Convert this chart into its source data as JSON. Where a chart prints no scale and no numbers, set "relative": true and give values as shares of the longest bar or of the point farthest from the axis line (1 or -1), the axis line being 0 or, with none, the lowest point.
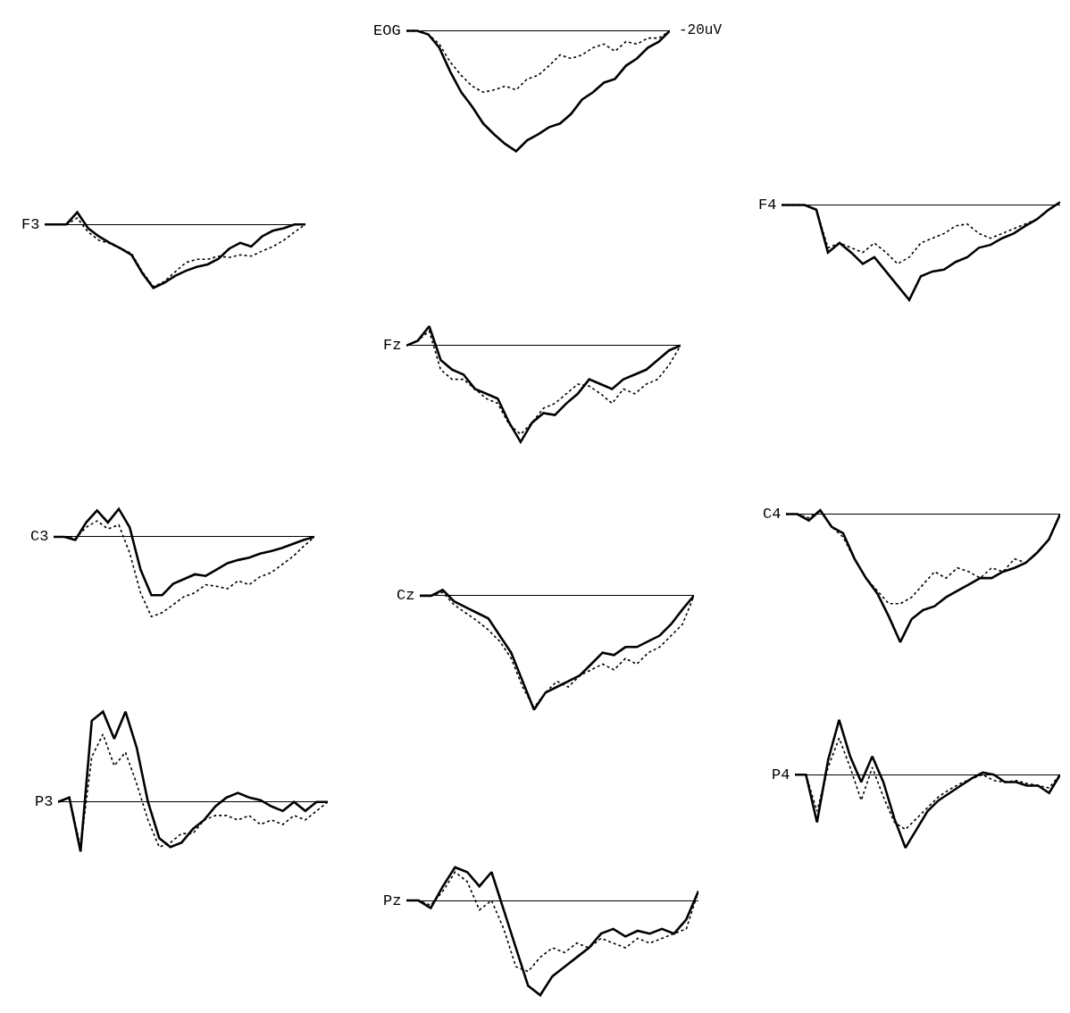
{
  "chart_data": [
    {
      "type": "line",
      "title": "EOG",
      "relative": true,
      "annotations": [
        "-20uV"
      ],
      "categories": [
        null,
        null,
        null,
        null,
        null,
        null,
        null,
        null,
        null,
        null,
        null,
        null,
        null,
        null,
        null,
        null,
        null,
        null,
        null,
        null,
        null,
        null,
        null,
        null,
        null
      ],
      "series": [
        {
          "color": "#000000",
          "line_style": "solid",
          "values": [
            0,
            0,
            -0.03,
            -0.14,
            -0.34,
            -0.51,
            -0.63,
            -0.77,
            -0.86,
            -0.94,
            -1,
            -0.91,
            -0.86,
            -0.8,
            -0.77,
            -0.69,
            -0.57,
            -0.51,
            -0.43,
            -0.4,
            -0.29,
            -0.23,
            -0.14,
            -0.09,
            0
          ]
        },
        {
          "color": "#000000",
          "line_style": "dotted",
          "values": [
            0,
            0,
            -0.03,
            -0.11,
            -0.26,
            -0.37,
            -0.46,
            -0.51,
            -0.49,
            -0.46,
            -0.49,
            -0.4,
            -0.37,
            -0.29,
            -0.2,
            -0.23,
            -0.2,
            -0.14,
            -0.11,
            -0.17,
            -0.09,
            -0.11,
            -0.06,
            -0.06,
            0
          ]
        }
      ]
    },
    {
      "type": "line",
      "title": "F3",
      "relative": true,
      "categories": [
        null,
        null,
        null,
        null,
        null,
        null,
        null,
        null,
        null,
        null,
        null,
        null,
        null,
        null,
        null,
        null,
        null,
        null,
        null,
        null,
        null,
        null,
        null,
        null,
        null
      ],
      "series": [
        {
          "color": "#000000",
          "line_style": "solid",
          "values": [
            0,
            0,
            0,
            0.19,
            -0.06,
            -0.19,
            -0.29,
            -0.38,
            -0.48,
            -0.77,
            -1,
            -0.92,
            -0.81,
            -0.73,
            -0.67,
            -0.63,
            -0.54,
            -0.38,
            -0.29,
            -0.35,
            -0.19,
            -0.1,
            -0.06,
            0,
            0
          ]
        },
        {
          "color": "#000000",
          "line_style": "dotted",
          "values": [
            0,
            0,
            0,
            0.1,
            -0.12,
            -0.25,
            -0.3,
            -0.38,
            -0.46,
            -0.75,
            -0.98,
            -0.9,
            -0.75,
            -0.6,
            -0.55,
            -0.55,
            -0.5,
            -0.52,
            -0.48,
            -0.5,
            -0.42,
            -0.35,
            -0.25,
            -0.12,
            0
          ]
        }
      ]
    },
    {
      "type": "line",
      "title": "F4",
      "relative": true,
      "categories": [
        null,
        null,
        null,
        null,
        null,
        null,
        null,
        null,
        null,
        null,
        null,
        null,
        null,
        null,
        null,
        null,
        null,
        null,
        null,
        null,
        null,
        null,
        null,
        null,
        null
      ],
      "series": [
        {
          "color": "#000000",
          "line_style": "solid",
          "values": [
            0,
            0,
            0,
            -0.05,
            -0.5,
            -0.4,
            -0.5,
            -0.62,
            -0.55,
            -0.7,
            -0.85,
            -1,
            -0.75,
            -0.7,
            -0.68,
            -0.6,
            -0.55,
            -0.45,
            -0.42,
            -0.35,
            -0.3,
            -0.22,
            -0.15,
            -0.05,
            0.03
          ]
        },
        {
          "color": "#000000",
          "line_style": "dotted",
          "values": [
            0,
            0,
            0,
            -0.05,
            -0.45,
            -0.4,
            -0.45,
            -0.5,
            -0.4,
            -0.5,
            -0.62,
            -0.55,
            -0.4,
            -0.35,
            -0.3,
            -0.22,
            -0.2,
            -0.3,
            -0.35,
            -0.3,
            -0.25,
            -0.2,
            -0.15,
            -0.05,
            0.03
          ]
        }
      ]
    },
    {
      "type": "line",
      "title": "Fz",
      "relative": true,
      "categories": [
        null,
        null,
        null,
        null,
        null,
        null,
        null,
        null,
        null,
        null,
        null,
        null,
        null,
        null,
        null,
        null,
        null,
        null,
        null,
        null,
        null,
        null,
        null,
        null,
        null
      ],
      "series": [
        {
          "color": "#000000",
          "line_style": "solid",
          "values": [
            0,
            0.05,
            0.2,
            -0.15,
            -0.25,
            -0.3,
            -0.45,
            -0.5,
            -0.55,
            -0.8,
            -1,
            -0.8,
            -0.7,
            -0.72,
            -0.6,
            -0.5,
            -0.35,
            -0.4,
            -0.45,
            -0.35,
            -0.3,
            -0.25,
            -0.15,
            -0.05,
            0
          ]
        },
        {
          "color": "#000000",
          "line_style": "dotted",
          "values": [
            0,
            0.05,
            0.15,
            -0.25,
            -0.35,
            -0.35,
            -0.45,
            -0.55,
            -0.6,
            -0.82,
            -0.92,
            -0.8,
            -0.65,
            -0.6,
            -0.5,
            -0.4,
            -0.42,
            -0.5,
            -0.6,
            -0.45,
            -0.5,
            -0.4,
            -0.35,
            -0.2,
            0
          ]
        }
      ]
    },
    {
      "type": "line",
      "title": "C3",
      "relative": true,
      "categories": [
        null,
        null,
        null,
        null,
        null,
        null,
        null,
        null,
        null,
        null,
        null,
        null,
        null,
        null,
        null,
        null,
        null,
        null,
        null,
        null,
        null,
        null,
        null,
        null,
        null
      ],
      "series": [
        {
          "color": "#000000",
          "line_style": "solid",
          "values": [
            0,
            0,
            -0.04,
            0.18,
            0.33,
            0.18,
            0.35,
            0.12,
            -0.41,
            -0.73,
            -0.73,
            -0.59,
            -0.53,
            -0.47,
            -0.49,
            -0.41,
            -0.33,
            -0.29,
            -0.26,
            -0.21,
            -0.18,
            -0.14,
            -0.09,
            -0.04,
            0
          ]
        },
        {
          "color": "#000000",
          "line_style": "dotted",
          "values": [
            0,
            0,
            -0.02,
            0.12,
            0.2,
            0.1,
            0.15,
            -0.2,
            -0.7,
            -1,
            -0.95,
            -0.85,
            -0.75,
            -0.7,
            -0.6,
            -0.62,
            -0.65,
            -0.55,
            -0.6,
            -0.5,
            -0.45,
            -0.35,
            -0.25,
            -0.12,
            0
          ]
        }
      ]
    },
    {
      "type": "line",
      "title": "C4",
      "relative": true,
      "categories": [
        null,
        null,
        null,
        null,
        null,
        null,
        null,
        null,
        null,
        null,
        null,
        null,
        null,
        null,
        null,
        null,
        null,
        null,
        null,
        null,
        null,
        null,
        null,
        null,
        null
      ],
      "series": [
        {
          "color": "#000000",
          "line_style": "solid",
          "values": [
            0,
            0,
            -0.05,
            0.03,
            -0.1,
            -0.15,
            -0.35,
            -0.5,
            -0.62,
            -0.8,
            -1,
            -0.82,
            -0.75,
            -0.72,
            -0.65,
            -0.6,
            -0.55,
            -0.5,
            -0.5,
            -0.45,
            -0.42,
            -0.38,
            -0.3,
            -0.2,
            0
          ]
        },
        {
          "color": "#000000",
          "line_style": "dotted",
          "values": [
            0,
            0,
            -0.03,
            0.03,
            -0.1,
            -0.18,
            -0.35,
            -0.5,
            -0.6,
            -0.7,
            -0.7,
            -0.65,
            -0.55,
            -0.45,
            -0.5,
            -0.42,
            -0.45,
            -0.5,
            -0.42,
            -0.45,
            -0.35,
            -0.38,
            -0.3,
            -0.2,
            0
          ]
        }
      ]
    },
    {
      "type": "line",
      "title": "Cz",
      "relative": true,
      "categories": [
        null,
        null,
        null,
        null,
        null,
        null,
        null,
        null,
        null,
        null,
        null,
        null,
        null,
        null,
        null,
        null,
        null,
        null,
        null,
        null,
        null,
        null,
        null,
        null,
        null
      ],
      "series": [
        {
          "color": "#000000",
          "line_style": "solid",
          "values": [
            0,
            0,
            0.05,
            -0.05,
            -0.1,
            -0.15,
            -0.2,
            -0.35,
            -0.5,
            -0.75,
            -1,
            -0.85,
            -0.8,
            -0.75,
            -0.7,
            -0.6,
            -0.5,
            -0.52,
            -0.45,
            -0.45,
            -0.4,
            -0.35,
            -0.25,
            -0.12,
            0
          ]
        },
        {
          "color": "#000000",
          "line_style": "dotted",
          "values": [
            0,
            0,
            0.03,
            -0.08,
            -0.15,
            -0.22,
            -0.3,
            -0.4,
            -0.55,
            -0.8,
            -0.98,
            -0.85,
            -0.75,
            -0.8,
            -0.7,
            -0.65,
            -0.6,
            -0.65,
            -0.55,
            -0.6,
            -0.5,
            -0.45,
            -0.35,
            -0.25,
            0
          ]
        }
      ]
    },
    {
      "type": "line",
      "title": "P3",
      "relative": true,
      "categories": [
        null,
        null,
        null,
        null,
        null,
        null,
        null,
        null,
        null,
        null,
        null,
        null,
        null,
        null,
        null,
        null,
        null,
        null,
        null,
        null,
        null,
        null,
        null,
        null,
        null
      ],
      "series": [
        {
          "color": "#000000",
          "line_style": "solid",
          "values": [
            0,
            0.05,
            -0.55,
            0.9,
            1,
            0.7,
            1,
            0.6,
            0,
            -0.4,
            -0.5,
            -0.45,
            -0.3,
            -0.2,
            -0.05,
            0.05,
            0.1,
            0.05,
            0.02,
            -0.05,
            -0.1,
            0,
            -0.1,
            0,
            0
          ]
        },
        {
          "color": "#000000",
          "line_style": "dotted",
          "values": [
            0,
            0.05,
            -0.5,
            0.5,
            0.75,
            0.4,
            0.55,
            0.2,
            -0.2,
            -0.5,
            -0.45,
            -0.35,
            -0.35,
            -0.2,
            -0.15,
            -0.15,
            -0.2,
            -0.15,
            -0.25,
            -0.2,
            -0.25,
            -0.15,
            -0.2,
            -0.1,
            0
          ]
        }
      ]
    },
    {
      "type": "line",
      "title": "P4",
      "relative": true,
      "categories": [
        null,
        null,
        null,
        null,
        null,
        null,
        null,
        null,
        null,
        null,
        null,
        null,
        null,
        null,
        null,
        null,
        null,
        null,
        null,
        null,
        null,
        null,
        null,
        null,
        null
      ],
      "series": [
        {
          "color": "#000000",
          "line_style": "solid",
          "values": [
            0,
            0,
            -0.65,
            0.2,
            0.75,
            0.25,
            -0.1,
            0.25,
            -0.1,
            -0.6,
            -1,
            -0.75,
            -0.5,
            -0.35,
            -0.25,
            -0.15,
            -0.05,
            0.03,
            0,
            -0.1,
            -0.1,
            -0.15,
            -0.15,
            -0.25,
            0
          ]
        },
        {
          "color": "#000000",
          "line_style": "dotted",
          "values": [
            0,
            0,
            -0.5,
            0.1,
            0.5,
            0.1,
            -0.35,
            0.1,
            -0.3,
            -0.65,
            -0.75,
            -0.6,
            -0.45,
            -0.3,
            -0.2,
            -0.12,
            -0.05,
            0,
            -0.08,
            -0.1,
            -0.08,
            -0.12,
            -0.15,
            -0.18,
            0
          ]
        }
      ]
    },
    {
      "type": "line",
      "title": "Pz",
      "relative": true,
      "categories": [
        null,
        null,
        null,
        null,
        null,
        null,
        null,
        null,
        null,
        null,
        null,
        null,
        null,
        null,
        null,
        null,
        null,
        null,
        null,
        null,
        null,
        null,
        null,
        null,
        null
      ],
      "series": [
        {
          "color": "#000000",
          "line_style": "solid",
          "values": [
            0,
            0,
            -0.08,
            0.15,
            0.35,
            0.3,
            0.15,
            0.3,
            -0.1,
            -0.5,
            -0.9,
            -1,
            -0.8,
            -0.7,
            -0.6,
            -0.5,
            -0.35,
            -0.3,
            -0.38,
            -0.32,
            -0.35,
            -0.3,
            -0.35,
            -0.2,
            0.1
          ]
        },
        {
          "color": "#000000",
          "line_style": "dotted",
          "values": [
            0,
            0,
            -0.05,
            0.1,
            0.3,
            0.2,
            -0.1,
            0,
            -0.3,
            -0.7,
            -0.75,
            -0.6,
            -0.5,
            -0.55,
            -0.45,
            -0.5,
            -0.4,
            -0.45,
            -0.5,
            -0.4,
            -0.45,
            -0.4,
            -0.35,
            -0.3,
            0.1
          ]
        }
      ]
    }
  ]
}
